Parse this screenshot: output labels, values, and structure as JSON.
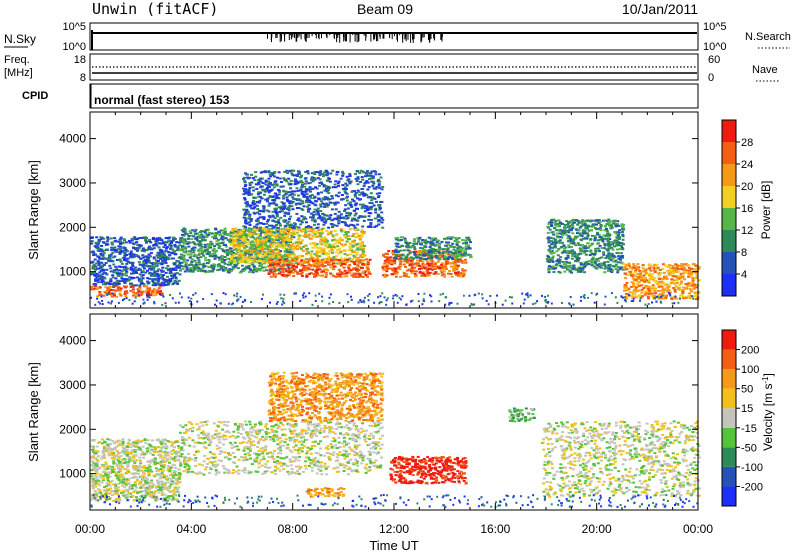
{
  "header": {
    "station": "Unwin (fitACF)",
    "beam": "Beam 09",
    "date": "10/Jan/2011"
  },
  "panels": {
    "nsky": {
      "label": "N.Sky",
      "left_ticks": [
        "10^5",
        "10^0"
      ],
      "right_ticks": [
        "10^5",
        "10^0"
      ],
      "right_label": "N.Search"
    },
    "freq": {
      "label_top": "Freq.",
      "label_unit": "[MHz]",
      "left_ticks": [
        "18",
        "8"
      ],
      "right_ticks": [
        "60",
        "0"
      ],
      "right_label": "Nave"
    },
    "cpid": {
      "label": "CPID",
      "text": "normal (fast stereo) 153"
    }
  },
  "chart_data": [
    {
      "type": "heatmap",
      "name": "power",
      "ylabel": "Slant Range [km]",
      "yticks": [
        1000,
        2000,
        3000,
        4000
      ],
      "ylim": [
        180,
        4600
      ],
      "xlim": [
        0,
        24
      ],
      "colorbar": {
        "label": "Power [dB]",
        "ticks": [
          4,
          8,
          12,
          16,
          20,
          24,
          28
        ],
        "colors": [
          "#1d2ff5",
          "#2452b8",
          "#2f8a5a",
          "#56b648",
          "#f3d020",
          "#f59a18",
          "#f45e12",
          "#ee1c10"
        ]
      },
      "regions": [
        {
          "x": [
            0.0,
            2.8
          ],
          "y": [
            450,
            700
          ],
          "level": 6
        },
        {
          "x": [
            0.0,
            3.5
          ],
          "y": [
            700,
            1800
          ],
          "level": 1
        },
        {
          "x": [
            3.5,
            8.0
          ],
          "y": [
            1000,
            2000
          ],
          "level": 2
        },
        {
          "x": [
            5.5,
            10.8
          ],
          "y": [
            1200,
            2000
          ],
          "level": 4
        },
        {
          "x": [
            7.0,
            11.0
          ],
          "y": [
            900,
            1300
          ],
          "level": 6
        },
        {
          "x": [
            6.0,
            11.5
          ],
          "y": [
            2000,
            3300
          ],
          "level": 1
        },
        {
          "x": [
            11.5,
            14.8
          ],
          "y": [
            900,
            1500
          ],
          "level": 6
        },
        {
          "x": [
            12.0,
            15.0
          ],
          "y": [
            1300,
            1800
          ],
          "level": 2
        },
        {
          "x": [
            18.0,
            21.0
          ],
          "y": [
            1000,
            2200
          ],
          "level": 2
        },
        {
          "x": [
            21.0,
            24.0
          ],
          "y": [
            400,
            1200
          ],
          "level": 5
        }
      ]
    },
    {
      "type": "heatmap",
      "name": "velocity",
      "ylabel": "Slant Range [km]",
      "yticks": [
        1000,
        2000,
        3000,
        4000
      ],
      "ylim": [
        180,
        4600
      ],
      "xlim": [
        0,
        24
      ],
      "xticks": [
        "00:00",
        "04:00",
        "08:00",
        "12:00",
        "16:00",
        "20:00",
        "00:00"
      ],
      "xlabel": "Time UT",
      "colorbar": {
        "label": "Velocity [m s-1]",
        "ticks": [
          200,
          100,
          50,
          15,
          -15,
          -50,
          -100,
          -200
        ],
        "colors": [
          "#1d2ff5",
          "#2452b8",
          "#2f8a5a",
          "#56c43a",
          "#c4c4bc",
          "#f3c01a",
          "#f59a18",
          "#f45e12",
          "#ee1c10"
        ]
      },
      "regions": [
        {
          "x": [
            0.0,
            3.5
          ],
          "y": [
            400,
            1800
          ],
          "level": 4
        },
        {
          "x": [
            3.5,
            11.5
          ],
          "y": [
            1000,
            2200
          ],
          "level": 4
        },
        {
          "x": [
            7.0,
            11.5
          ],
          "y": [
            2200,
            3300
          ],
          "level": 6
        },
        {
          "x": [
            11.8,
            14.8
          ],
          "y": [
            800,
            1400
          ],
          "level": 8
        },
        {
          "x": [
            8.5,
            10.0
          ],
          "y": [
            500,
            700
          ],
          "level": 6
        },
        {
          "x": [
            16.5,
            17.5
          ],
          "y": [
            2200,
            2500
          ],
          "level": 3
        },
        {
          "x": [
            17.8,
            24.0
          ],
          "y": [
            500,
            2200
          ],
          "level": 4
        }
      ]
    }
  ]
}
